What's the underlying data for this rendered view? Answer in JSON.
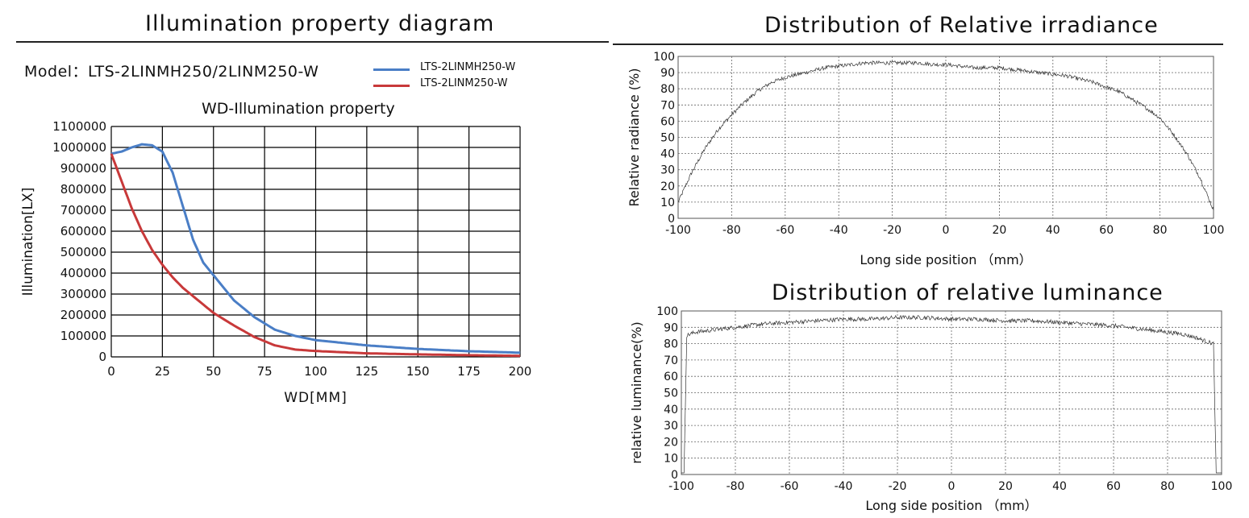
{
  "headings": {
    "left": "Illumination property diagram",
    "right_top": "Distribution of Relative irradiance",
    "right_bottom": "Distribution of relative luminance"
  },
  "model_line": "Model：LTS-2LINMH250/2LINM250-W",
  "colors": {
    "blue": "#4a7ec6",
    "red": "#c8393a",
    "grid": "#000000",
    "trace": "#333333"
  },
  "chart_data": [
    {
      "type": "line",
      "title": "WD-Illumination property",
      "xlabel": "WD[MM]",
      "ylabel": "Illumination[LX]",
      "xlim": [
        0,
        200
      ],
      "ylim": [
        0,
        1100000
      ],
      "x_ticks": [
        "0",
        "25",
        "50",
        "75",
        "100",
        "125",
        "150",
        "175",
        "200"
      ],
      "y_ticks": [
        "0",
        "100000",
        "200000",
        "300000",
        "400000",
        "500000",
        "600000",
        "700000",
        "800000",
        "900000",
        "1000000",
        "1100000"
      ],
      "grid": true,
      "legend_position": "top-right",
      "series": [
        {
          "name": "LTS-2LINMH250-W",
          "color": "#4a7ec6",
          "x": [
            0,
            5,
            10,
            15,
            20,
            25,
            30,
            35,
            40,
            45,
            50,
            60,
            70,
            80,
            90,
            100,
            125,
            150,
            175,
            200
          ],
          "y": [
            970000,
            980000,
            1000000,
            1015000,
            1010000,
            980000,
            880000,
            720000,
            560000,
            450000,
            390000,
            270000,
            190000,
            130000,
            100000,
            80000,
            55000,
            38000,
            27000,
            20000
          ]
        },
        {
          "name": "LTS-2LINM250-W",
          "color": "#c8393a",
          "x": [
            0,
            5,
            10,
            15,
            20,
            25,
            30,
            35,
            40,
            45,
            50,
            60,
            70,
            80,
            90,
            100,
            125,
            150,
            175,
            200
          ],
          "y": [
            970000,
            840000,
            710000,
            600000,
            510000,
            440000,
            380000,
            330000,
            290000,
            250000,
            210000,
            150000,
            95000,
            55000,
            35000,
            28000,
            17000,
            12000,
            8000,
            5000
          ]
        }
      ]
    },
    {
      "type": "line",
      "title": "Distribution of Relative irradiance",
      "xlabel": "Long side position （mm）",
      "ylabel": "Relative radiance (%)",
      "xlim": [
        -100,
        100
      ],
      "ylim": [
        0,
        100
      ],
      "x_ticks": [
        "-100",
        "-80",
        "-60",
        "-40",
        "-20",
        "0",
        "20",
        "40",
        "60",
        "80",
        "100"
      ],
      "y_ticks": [
        "0",
        "10",
        "20",
        "30",
        "40",
        "50",
        "60",
        "70",
        "80",
        "90",
        "100"
      ],
      "grid": true,
      "series": [
        {
          "x": [
            -100,
            -95,
            -90,
            -85,
            -80,
            -75,
            -70,
            -65,
            -60,
            -55,
            -50,
            -45,
            -40,
            -35,
            -30,
            -25,
            -20,
            -15,
            -10,
            -5,
            0,
            5,
            10,
            15,
            20,
            25,
            30,
            35,
            40,
            45,
            50,
            55,
            60,
            65,
            70,
            75,
            80,
            85,
            90,
            95,
            100
          ],
          "y": [
            10,
            28,
            43,
            55,
            64,
            72,
            79,
            84,
            87,
            89,
            91,
            93,
            94,
            95,
            96,
            96,
            96,
            96,
            96,
            95,
            95,
            94,
            93,
            93,
            93,
            92,
            91,
            90,
            89,
            88,
            86,
            84,
            81,
            78,
            73,
            68,
            62,
            52,
            40,
            25,
            5
          ]
        }
      ]
    },
    {
      "type": "line",
      "title": "Distribution of relative luminance",
      "xlabel": "Long side position （mm）",
      "ylabel": "relative luminance(%)",
      "xlim": [
        -100,
        100
      ],
      "ylim": [
        0,
        100
      ],
      "x_ticks": [
        "-100",
        "-80",
        "-60",
        "-40",
        "-20",
        "0",
        "20",
        "40",
        "60",
        "80",
        "100"
      ],
      "y_ticks": [
        "0",
        "10",
        "20",
        "30",
        "40",
        "50",
        "60",
        "70",
        "80",
        "90",
        "100"
      ],
      "grid": true,
      "series": [
        {
          "x": [
            -100,
            -99,
            -98,
            -95,
            -90,
            -85,
            -80,
            -70,
            -60,
            -50,
            -40,
            -30,
            -20,
            -10,
            0,
            10,
            20,
            30,
            40,
            50,
            60,
            70,
            80,
            85,
            90,
            95,
            97,
            98,
            100
          ],
          "y": [
            1,
            1,
            85,
            87,
            88,
            89,
            90,
            92,
            93,
            94,
            95,
            95,
            96,
            96,
            95,
            95,
            94,
            94,
            93,
            92,
            91,
            89,
            87,
            86,
            84,
            81,
            80,
            1,
            1
          ]
        }
      ]
    }
  ]
}
